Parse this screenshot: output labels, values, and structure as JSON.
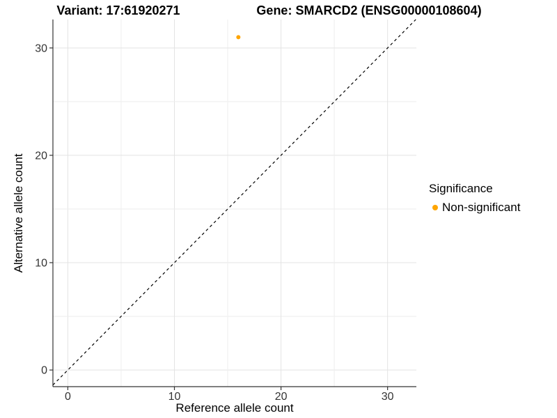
{
  "chart_data": {
    "type": "scatter",
    "titles": {
      "variant": "Variant: 17:61920271",
      "gene": "Gene: SMARCD2 (ENSG00000108604)"
    },
    "xlabel": "Reference allele count",
    "ylabel": "Alternative allele count",
    "xlim": [
      -1.4,
      32.7
    ],
    "ylim": [
      -1.55,
      32.65
    ],
    "x_ticks": [
      0,
      10,
      20,
      30
    ],
    "y_ticks": [
      0,
      10,
      20,
      30
    ],
    "grid": {
      "show": true,
      "minor_step": 5,
      "major_step": 10
    },
    "points": [
      {
        "x": 16,
        "y": 31,
        "series": "Non-significant"
      }
    ],
    "identity_line": {
      "style": "dashed",
      "equation": "y = x",
      "color": "#000000"
    },
    "legend": {
      "position": "right",
      "title": "Significance",
      "entries": [
        {
          "label": "Non-significant",
          "color": "#FFA500"
        }
      ]
    },
    "colors": {
      "background": "#ffffff",
      "point": "#FFA500",
      "axis_line": "#333333",
      "grid_major": "#e3e3e3",
      "grid_minor": "#eeeeee",
      "tick_text": "#333333",
      "title_text": "#000000"
    }
  }
}
